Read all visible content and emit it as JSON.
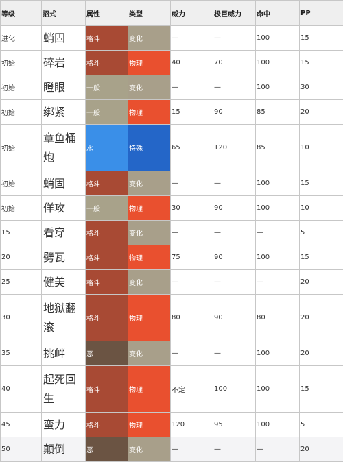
{
  "headers": [
    "等级",
    "招式",
    "属性",
    "类型",
    "威力",
    "极巨威力",
    "命中",
    "PP"
  ],
  "rows": [
    {
      "level": "进化",
      "move": "蛸固",
      "type": "格斗",
      "cat": "变化",
      "power": "—",
      "max": "—",
      "acc": "100",
      "pp": "15"
    },
    {
      "level": "初始",
      "move": "碎岩",
      "type": "格斗",
      "cat": "物理",
      "power": "40",
      "max": "70",
      "acc": "100",
      "pp": "15"
    },
    {
      "level": "初始",
      "move": "瞪眼",
      "type": "一般",
      "cat": "变化",
      "power": "—",
      "max": "—",
      "acc": "100",
      "pp": "30"
    },
    {
      "level": "初始",
      "move": "绑紧",
      "type": "一般",
      "cat": "物理",
      "power": "15",
      "max": "90",
      "acc": "85",
      "pp": "20"
    },
    {
      "level": "初始",
      "move": "章鱼桶炮",
      "type": "水",
      "cat": "特殊",
      "power": "65",
      "max": "120",
      "acc": "85",
      "pp": "10"
    },
    {
      "level": "初始",
      "move": "蛸固",
      "type": "格斗",
      "cat": "变化",
      "power": "—",
      "max": "—",
      "acc": "100",
      "pp": "15"
    },
    {
      "level": "初始",
      "move": "佯攻",
      "type": "一般",
      "cat": "物理",
      "power": "30",
      "max": "90",
      "acc": "100",
      "pp": "10"
    },
    {
      "level": "15",
      "move": "看穿",
      "type": "格斗",
      "cat": "变化",
      "power": "—",
      "max": "—",
      "acc": "—",
      "pp": "5"
    },
    {
      "level": "20",
      "move": "劈瓦",
      "type": "格斗",
      "cat": "物理",
      "power": "75",
      "max": "90",
      "acc": "100",
      "pp": "15"
    },
    {
      "level": "25",
      "move": "健美",
      "type": "格斗",
      "cat": "变化",
      "power": "—",
      "max": "—",
      "acc": "—",
      "pp": "20"
    },
    {
      "level": "30",
      "move": "地狱翻滚",
      "type": "格斗",
      "cat": "物理",
      "power": "80",
      "max": "90",
      "acc": "80",
      "pp": "20"
    },
    {
      "level": "35",
      "move": "挑衅",
      "type": "恶",
      "cat": "变化",
      "power": "—",
      "max": "—",
      "acc": "100",
      "pp": "20"
    },
    {
      "level": "40",
      "move": "起死回生",
      "type": "格斗",
      "cat": "物理",
      "power": "不定",
      "max": "100",
      "acc": "100",
      "pp": "15"
    },
    {
      "level": "45",
      "move": "蛮力",
      "type": "格斗",
      "cat": "物理",
      "power": "120",
      "max": "95",
      "acc": "100",
      "pp": "5"
    },
    {
      "level": "50",
      "move": "颠倒",
      "type": "恶",
      "cat": "变化",
      "power": "—",
      "max": "—",
      "acc": "—",
      "pp": "20"
    }
  ],
  "type_colors": {
    "格斗": "#a84a34",
    "一般": "#a8a28a",
    "水": "#3a8fe8",
    "恶": "#6b5443"
  },
  "category_colors": {
    "变化": "#a89f8a",
    "物理": "#e9502f",
    "特殊": "#2466c8"
  }
}
